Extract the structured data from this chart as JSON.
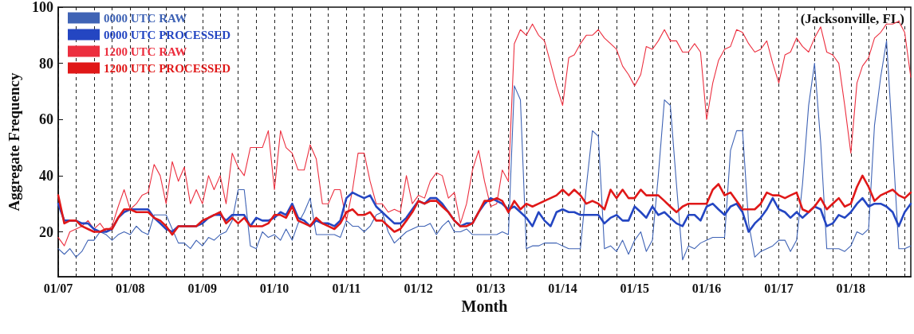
{
  "chart_data": {
    "type": "line",
    "ylabel": "Aggregate Frequency",
    "xlabel": "Month",
    "annotations": [
      "(Jacksonville, FL)"
    ],
    "x": [
      "2007-01",
      "2007-02",
      "2007-03",
      "2007-04",
      "2007-05",
      "2007-06",
      "2007-07",
      "2007-08",
      "2007-09",
      "2007-10",
      "2007-11",
      "2007-12",
      "2008-01",
      "2008-02",
      "2008-03",
      "2008-04",
      "2008-05",
      "2008-06",
      "2008-07",
      "2008-08",
      "2008-09",
      "2008-10",
      "2008-11",
      "2008-12",
      "2009-01",
      "2009-02",
      "2009-03",
      "2009-04",
      "2009-05",
      "2009-06",
      "2009-07",
      "2009-08",
      "2009-09",
      "2009-10",
      "2009-11",
      "2009-12",
      "2010-01",
      "2010-02",
      "2010-03",
      "2010-04",
      "2010-05",
      "2010-06",
      "2010-07",
      "2010-08",
      "2010-09",
      "2010-10",
      "2010-11",
      "2010-12",
      "2011-01",
      "2011-02",
      "2011-03",
      "2011-04",
      "2011-05",
      "2011-06",
      "2011-07",
      "2011-08",
      "2011-09",
      "2011-10",
      "2011-11",
      "2011-12",
      "2012-01",
      "2012-02",
      "2012-03",
      "2012-04",
      "2012-05",
      "2012-06",
      "2012-07",
      "2012-08",
      "2012-09",
      "2012-10",
      "2012-11",
      "2012-12",
      "2013-01",
      "2013-02",
      "2013-03",
      "2013-04",
      "2013-05",
      "2013-06",
      "2013-07",
      "2013-08",
      "2013-09",
      "2013-10",
      "2013-11",
      "2013-12",
      "2014-01",
      "2014-02",
      "2014-03",
      "2014-04",
      "2014-05",
      "2014-06",
      "2014-07",
      "2014-08",
      "2014-09",
      "2014-10",
      "2014-11",
      "2014-12",
      "2015-01",
      "2015-02",
      "2015-03",
      "2015-04",
      "2015-05",
      "2015-06",
      "2015-07",
      "2015-08",
      "2015-09",
      "2015-10",
      "2015-11",
      "2015-12",
      "2016-01",
      "2016-02",
      "2016-03",
      "2016-04",
      "2016-05",
      "2016-06",
      "2016-07",
      "2016-08",
      "2016-09",
      "2016-10",
      "2016-11",
      "2016-12",
      "2017-01",
      "2017-02",
      "2017-03",
      "2017-04",
      "2017-05",
      "2017-06",
      "2017-07",
      "2017-08",
      "2017-09",
      "2017-10",
      "2017-11",
      "2017-12",
      "2018-01",
      "2018-02",
      "2018-03",
      "2018-04",
      "2018-05",
      "2018-06",
      "2018-07",
      "2018-08",
      "2018-09",
      "2018-10",
      "2018-11"
    ],
    "series": [
      {
        "name": "0000 UTC RAW",
        "color": "#3f63b5",
        "values": [
          14,
          12,
          14,
          11,
          13,
          17,
          17,
          20,
          19,
          17,
          19,
          20,
          19,
          22,
          20,
          19,
          26,
          26,
          26,
          21,
          16,
          16,
          14,
          17,
          15,
          18,
          17,
          19,
          20,
          24,
          35,
          35,
          15,
          14,
          20,
          18,
          19,
          17,
          21,
          17,
          23,
          27,
          32,
          19,
          19,
          19,
          19,
          18,
          24,
          22,
          22,
          20,
          22,
          26,
          27,
          20,
          16,
          18,
          20,
          21,
          22,
          22,
          23,
          19,
          22,
          24,
          20,
          20,
          21,
          19,
          19,
          19,
          19,
          19,
          20,
          19,
          72,
          67,
          14,
          15,
          15,
          16,
          16,
          16,
          15,
          14,
          14,
          14,
          36,
          56,
          54,
          14,
          15,
          13,
          17,
          12,
          17,
          20,
          13,
          17,
          40,
          67,
          65,
          37,
          10,
          15,
          14,
          16,
          17,
          18,
          18,
          18,
          49,
          56,
          56,
          23,
          11,
          13,
          14,
          15,
          17,
          17,
          13,
          17,
          37,
          65,
          80,
          52,
          14,
          14,
          14,
          13,
          15,
          20,
          19,
          21,
          58,
          75,
          88,
          52,
          14,
          14,
          15
        ]
      },
      {
        "name": "0000 UTC PROCESSED",
        "color": "#2446c2",
        "values": [
          30,
          24,
          24,
          24,
          23,
          23,
          21,
          20,
          20,
          21,
          25,
          27,
          28,
          28,
          28,
          28,
          25,
          23,
          21,
          20,
          22,
          22,
          22,
          22,
          23,
          25,
          26,
          26,
          24,
          26,
          26,
          26,
          22,
          25,
          24,
          24,
          25,
          27,
          26,
          30,
          25,
          24,
          22,
          24,
          23,
          23,
          22,
          24,
          32,
          34,
          33,
          32,
          33,
          29,
          27,
          25,
          23,
          23,
          25,
          28,
          31,
          30,
          32,
          32,
          30,
          27,
          24,
          22,
          23,
          23,
          27,
          30,
          32,
          31,
          30,
          28,
          29,
          27,
          25,
          22,
          27,
          24,
          22,
          27,
          28,
          27,
          27,
          26,
          26,
          26,
          26,
          23,
          25,
          26,
          24,
          24,
          29,
          27,
          25,
          29,
          26,
          27,
          25,
          23,
          22,
          26,
          26,
          24,
          29,
          30,
          28,
          26,
          29,
          30,
          27,
          20,
          23,
          25,
          28,
          32,
          28,
          27,
          25,
          27,
          25,
          27,
          29,
          28,
          22,
          23,
          26,
          25,
          27,
          30,
          32,
          29,
          30,
          30,
          29,
          27,
          22,
          27,
          30
        ]
      },
      {
        "name": "1200 UTC RAW",
        "color": "#ec2f3f",
        "values": [
          18,
          15,
          20,
          21,
          22,
          24,
          21,
          23,
          20,
          22,
          29,
          35,
          28,
          30,
          33,
          34,
          44,
          40,
          30,
          45,
          38,
          43,
          30,
          35,
          30,
          40,
          35,
          40,
          30,
          48,
          43,
          40,
          50,
          50,
          50,
          56,
          35,
          56,
          50,
          48,
          42,
          42,
          51,
          46,
          30,
          30,
          35,
          35,
          24,
          35,
          48,
          48,
          38,
          30,
          30,
          27,
          28,
          27,
          40,
          30,
          33,
          32,
          38,
          41,
          40,
          32,
          34,
          23,
          30,
          42,
          49,
          38,
          29,
          30,
          42,
          38,
          87,
          92,
          90,
          94,
          90,
          88,
          80,
          72,
          65,
          82,
          83,
          87,
          90,
          90,
          92,
          89,
          87,
          85,
          79,
          76,
          72,
          76,
          86,
          85,
          88,
          92,
          88,
          88,
          84,
          84,
          87,
          84,
          60,
          73,
          81,
          85,
          86,
          92,
          91,
          87,
          84,
          85,
          88,
          80,
          73,
          83,
          84,
          89,
          86,
          84,
          89,
          93,
          84,
          83,
          80,
          65,
          48,
          73,
          79,
          82,
          89,
          91,
          94,
          94,
          95,
          91,
          75
        ]
      },
      {
        "name": "1200 UTC PROCESSED",
        "color": "#e01818",
        "values": [
          33,
          23,
          24,
          24,
          22,
          21,
          20,
          20,
          21,
          21,
          25,
          28,
          28,
          27,
          27,
          27,
          25,
          24,
          22,
          19,
          22,
          22,
          22,
          22,
          24,
          25,
          26,
          27,
          23,
          25,
          23,
          25,
          22,
          22,
          22,
          23,
          26,
          26,
          25,
          29,
          24,
          23,
          22,
          25,
          23,
          22,
          21,
          23,
          27,
          28,
          26,
          26,
          27,
          24,
          24,
          22,
          20,
          21,
          24,
          27,
          31,
          30,
          31,
          31,
          29,
          27,
          24,
          22,
          22,
          23,
          27,
          31,
          31,
          32,
          31,
          27,
          31,
          28,
          30,
          29,
          30,
          31,
          32,
          33,
          35,
          33,
          35,
          33,
          30,
          31,
          30,
          28,
          35,
          32,
          35,
          32,
          32,
          35,
          33,
          33,
          33,
          31,
          29,
          27,
          29,
          30,
          30,
          30,
          30,
          35,
          37,
          33,
          34,
          31,
          28,
          28,
          28,
          30,
          34,
          33,
          33,
          32,
          33,
          34,
          28,
          27,
          29,
          32,
          28,
          30,
          32,
          29,
          30,
          36,
          40,
          36,
          31,
          33,
          34,
          35,
          33,
          32,
          34
        ]
      }
    ],
    "xlim": [
      "2007-01",
      "2018-11"
    ],
    "xticks": [
      {
        "value": "2007-01",
        "label": "01/07"
      },
      {
        "value": "2007-04",
        "label": null
      },
      {
        "value": "2007-07",
        "label": null
      },
      {
        "value": "2007-10",
        "label": null
      },
      {
        "value": "2008-01",
        "label": "01/08"
      },
      {
        "value": "2008-04",
        "label": null
      },
      {
        "value": "2008-07",
        "label": null
      },
      {
        "value": "2008-10",
        "label": null
      },
      {
        "value": "2009-01",
        "label": "01/09"
      },
      {
        "value": "2009-04",
        "label": null
      },
      {
        "value": "2009-07",
        "label": null
      },
      {
        "value": "2009-10",
        "label": null
      },
      {
        "value": "2010-01",
        "label": "01/10"
      },
      {
        "value": "2010-04",
        "label": null
      },
      {
        "value": "2010-07",
        "label": null
      },
      {
        "value": "2010-10",
        "label": null
      },
      {
        "value": "2011-01",
        "label": "01/11"
      },
      {
        "value": "2011-04",
        "label": null
      },
      {
        "value": "2011-07",
        "label": null
      },
      {
        "value": "2011-10",
        "label": null
      },
      {
        "value": "2012-01",
        "label": "01/12"
      },
      {
        "value": "2012-04",
        "label": null
      },
      {
        "value": "2012-07",
        "label": null
      },
      {
        "value": "2012-10",
        "label": null
      },
      {
        "value": "2013-01",
        "label": "01/13"
      },
      {
        "value": "2013-04",
        "label": null
      },
      {
        "value": "2013-07",
        "label": null
      },
      {
        "value": "2013-10",
        "label": null
      },
      {
        "value": "2014-01",
        "label": "01/14"
      },
      {
        "value": "2014-04",
        "label": null
      },
      {
        "value": "2014-07",
        "label": null
      },
      {
        "value": "2014-10",
        "label": null
      },
      {
        "value": "2015-01",
        "label": "01/15"
      },
      {
        "value": "2015-04",
        "label": null
      },
      {
        "value": "2015-07",
        "label": null
      },
      {
        "value": "2015-10",
        "label": null
      },
      {
        "value": "2016-01",
        "label": "01/16"
      },
      {
        "value": "2016-04",
        "label": null
      },
      {
        "value": "2016-07",
        "label": null
      },
      {
        "value": "2016-10",
        "label": null
      },
      {
        "value": "2017-01",
        "label": "01/17"
      },
      {
        "value": "2017-04",
        "label": null
      },
      {
        "value": "2017-07",
        "label": null
      },
      {
        "value": "2017-10",
        "label": null
      },
      {
        "value": "2018-01",
        "label": "01/18"
      },
      {
        "value": "2018-04",
        "label": null
      },
      {
        "value": "2018-07",
        "label": null
      },
      {
        "value": "2018-10",
        "label": null
      }
    ],
    "ylim": [
      4,
      100
    ],
    "yticks": [
      20,
      40,
      60,
      80,
      100
    ],
    "grid": "x",
    "legend": "top left"
  }
}
